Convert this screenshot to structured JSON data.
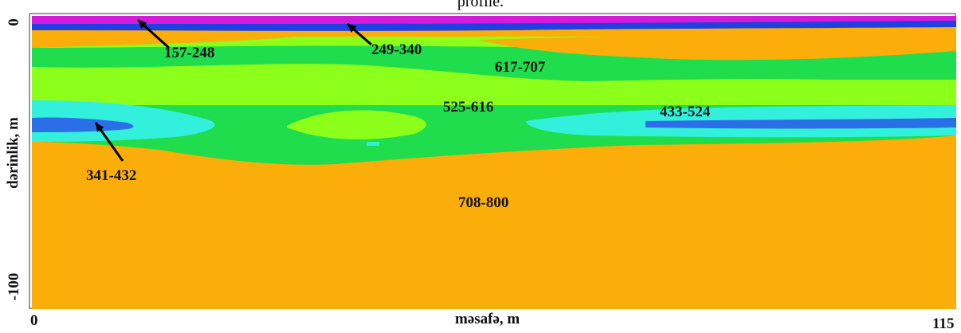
{
  "caption": "profile.",
  "chart_data": {
    "type": "heatmap",
    "title": "",
    "xlabel": "məsafə, m",
    "ylabel": "dərinlik, m",
    "xlim": [
      0,
      115
    ],
    "ylim": [
      -100,
      0
    ],
    "x_ticks": [
      "0",
      "115"
    ],
    "y_ticks": [
      "0",
      "-100"
    ],
    "color_classes": [
      {
        "label": "157-248",
        "color": "#d41bd9"
      },
      {
        "label": "249-340",
        "color": "#1f3fe0"
      },
      {
        "label": "341-432",
        "color": "#2b6fe6"
      },
      {
        "label": "433-524",
        "color": "#33f0dc"
      },
      {
        "label": "525-616",
        "color": "#1fdd4c"
      },
      {
        "label": "617-707",
        "color": "#8cff1a"
      },
      {
        "label": "708-800",
        "color": "#fbae09"
      }
    ],
    "annotations": [
      {
        "label": "157-248",
        "arrow": true
      },
      {
        "label": "249-340",
        "arrow": true
      },
      {
        "label": "617-707",
        "arrow": false
      },
      {
        "label": "525-616",
        "arrow": false
      },
      {
        "label": "433-524",
        "arrow": false
      },
      {
        "label": "341-432",
        "arrow": true
      },
      {
        "label": "708-800",
        "arrow": false
      }
    ]
  }
}
